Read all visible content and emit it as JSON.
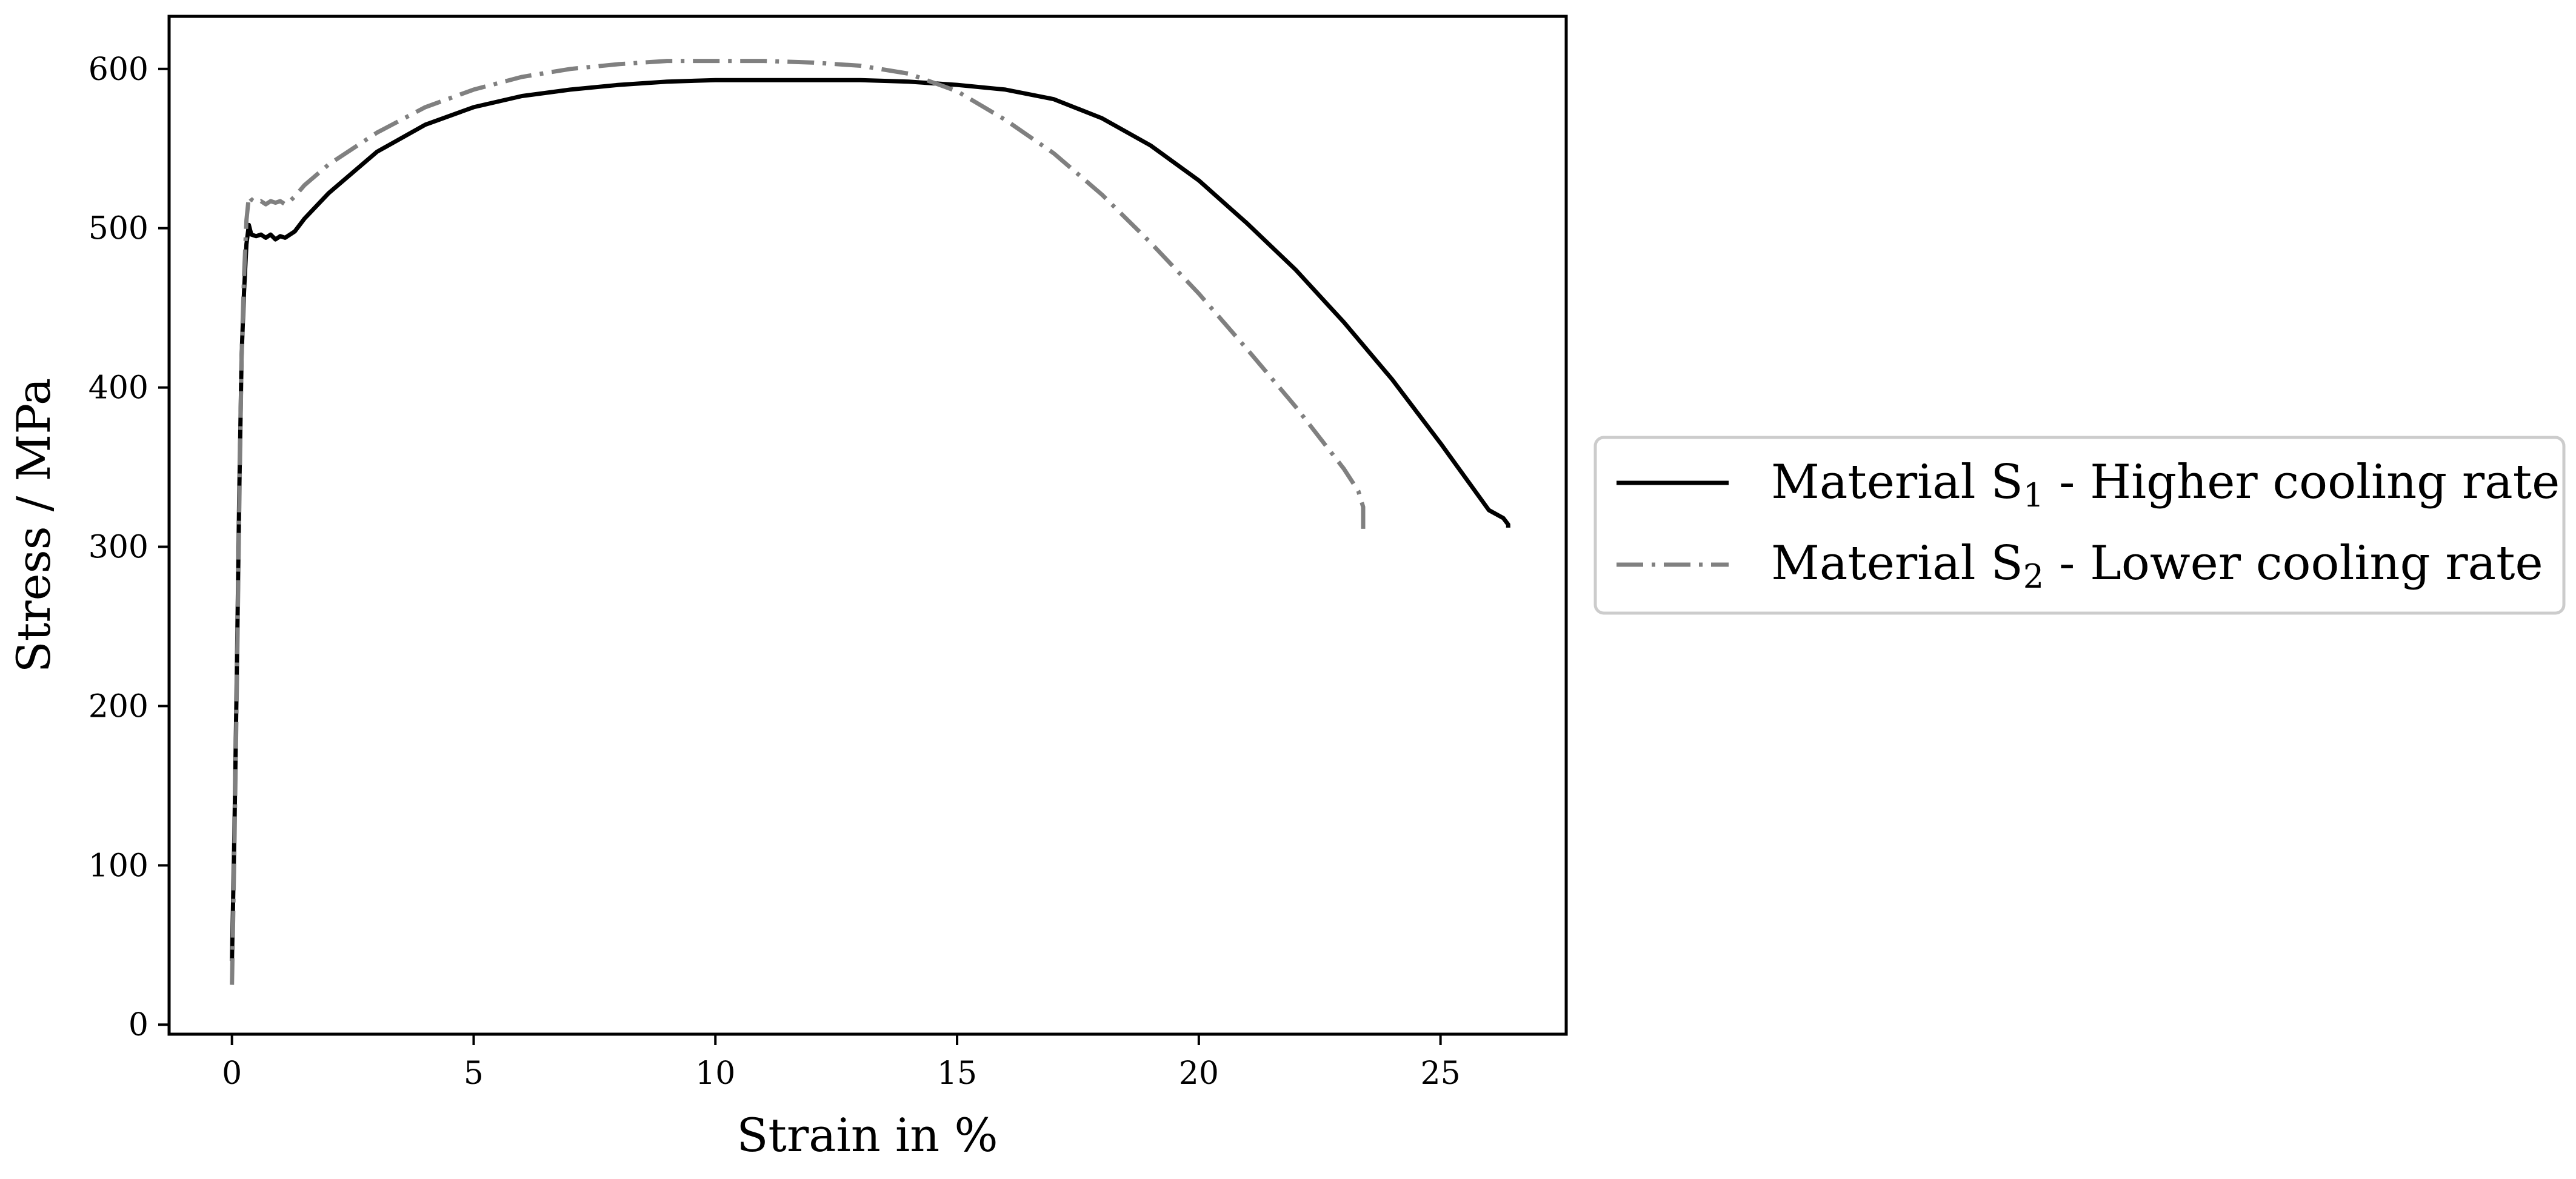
{
  "chart_data": {
    "type": "line",
    "title": "",
    "xlabel": "Strain in %",
    "ylabel": "Stress / MPa",
    "xlim": [
      -1.3,
      27.6
    ],
    "ylim": [
      -6,
      633
    ],
    "xticks": [
      0,
      5,
      10,
      15,
      20,
      25
    ],
    "yticks": [
      0,
      100,
      200,
      300,
      400,
      500,
      600
    ],
    "grid": false,
    "legend_position": "right, outside plot",
    "series": [
      {
        "name": "Material S₁ - Higher cooling rate",
        "label_main": "Material S",
        "label_sub": "1",
        "label_rest": " - Higher cooling rate",
        "color": "#000000",
        "linestyle": "solid",
        "x": [
          0.0,
          0.05,
          0.1,
          0.15,
          0.2,
          0.25,
          0.3,
          0.35,
          0.4,
          0.5,
          0.6,
          0.7,
          0.8,
          0.9,
          1.0,
          1.1,
          1.2,
          1.3,
          1.5,
          2,
          3,
          4,
          5,
          6,
          7,
          8,
          9,
          10,
          11,
          12,
          13,
          14,
          15,
          16,
          17,
          18,
          19,
          20,
          21,
          22,
          23,
          24,
          25,
          25.5,
          26,
          26.3,
          26.4,
          26.4
        ],
        "y": [
          40,
          120,
          220,
          330,
          420,
          460,
          490,
          502,
          496,
          495,
          496,
          494,
          496,
          493,
          495,
          494,
          496,
          498,
          506,
          522,
          548,
          565,
          576,
          583,
          587,
          590,
          592,
          593,
          593,
          593,
          593,
          592,
          590,
          587,
          581,
          569,
          552,
          530,
          503,
          474,
          441,
          405,
          365,
          344,
          323,
          318,
          314,
          312
        ]
      },
      {
        "name": "Material S₂ - Lower cooling rate",
        "label_main": "Material S",
        "label_sub": "2",
        "label_rest": " - Lower cooling rate",
        "color": "#808080",
        "linestyle": "dashdot",
        "x": [
          0.0,
          0.05,
          0.1,
          0.15,
          0.2,
          0.25,
          0.3,
          0.35,
          0.4,
          0.5,
          0.6,
          0.7,
          0.8,
          0.9,
          1.0,
          1.1,
          1.2,
          1.3,
          1.5,
          2,
          3,
          4,
          5,
          6,
          7,
          8,
          9,
          10,
          11,
          12,
          13,
          14,
          15,
          16,
          17,
          18,
          19,
          20,
          21,
          22,
          23,
          23.3,
          23.4,
          23.4
        ],
        "y": [
          25,
          110,
          210,
          320,
          420,
          470,
          505,
          520,
          518,
          516,
          517,
          515,
          517,
          516,
          517,
          515,
          517,
          520,
          527,
          540,
          560,
          576,
          587,
          595,
          600,
          603,
          605,
          605,
          605,
          604,
          602,
          597,
          586,
          568,
          547,
          521,
          491,
          459,
          424,
          388,
          349,
          335,
          325,
          308
        ]
      }
    ]
  }
}
